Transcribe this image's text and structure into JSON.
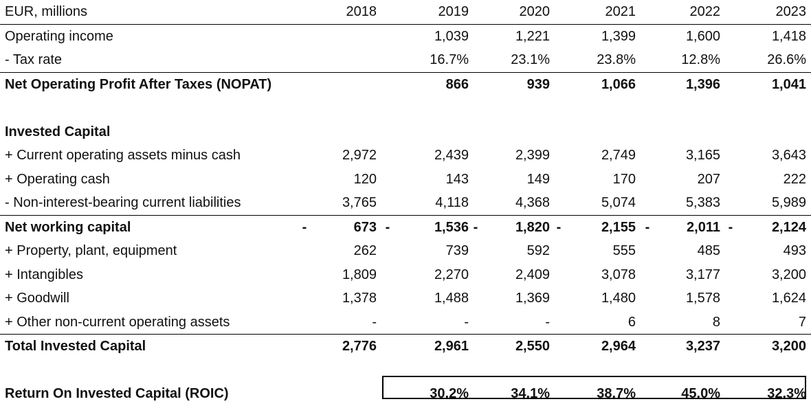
{
  "header": {
    "unit_label": "EUR, millions",
    "years": [
      "2018",
      "2019",
      "2020",
      "2021",
      "2022",
      "2023"
    ]
  },
  "rows": [
    {
      "key": "operating_income",
      "label": "Operating income",
      "bold": false,
      "values": [
        "",
        "1,039",
        "1,221",
        "1,399",
        "1,600",
        "1,418"
      ],
      "neg": [
        "",
        "",
        "",
        "",
        "",
        ""
      ]
    },
    {
      "key": "tax_rate",
      "label": "- Tax rate",
      "bold": false,
      "values": [
        "",
        "16.7%",
        "23.1%",
        "23.8%",
        "12.8%",
        "26.6%"
      ],
      "neg": [
        "",
        "",
        "",
        "",
        "",
        ""
      ]
    },
    {
      "key": "nopat",
      "label": "Net Operating Profit After Taxes (NOPAT)",
      "bold": true,
      "values": [
        "",
        "866",
        "939",
        "1,066",
        "1,396",
        "1,041"
      ],
      "neg": [
        "",
        "",
        "",
        "",
        "",
        ""
      ]
    },
    {
      "key": "spacer_1",
      "spacer": true
    },
    {
      "key": "invested_capital_heading",
      "label": "Invested Capital",
      "bold": true,
      "values": [
        "",
        "",
        "",
        "",
        "",
        ""
      ],
      "neg": [
        "",
        "",
        "",
        "",
        "",
        ""
      ]
    },
    {
      "key": "current_operating_assets",
      "label": "+ Current operating assets minus cash",
      "bold": false,
      "values": [
        "2,972",
        "2,439",
        "2,399",
        "2,749",
        "3,165",
        "3,643"
      ],
      "neg": [
        "",
        "",
        "",
        "",
        "",
        ""
      ]
    },
    {
      "key": "operating_cash",
      "label": "+ Operating cash",
      "bold": false,
      "values": [
        "120",
        "143",
        "149",
        "170",
        "207",
        "222"
      ],
      "neg": [
        "",
        "",
        "",
        "",
        "",
        ""
      ]
    },
    {
      "key": "non_interest_liabilities",
      "label": "- Non-interest-bearing current liabilities",
      "bold": false,
      "values": [
        "3,765",
        "4,118",
        "4,368",
        "5,074",
        "5,383",
        "5,989"
      ],
      "neg": [
        "",
        "",
        "",
        "",
        "",
        ""
      ]
    },
    {
      "key": "net_working_capital",
      "label": "Net working capital",
      "bold": true,
      "values": [
        "673",
        "1,536",
        "1,820",
        "2,155",
        "2,011",
        "2,124"
      ],
      "neg": [
        "-",
        "-",
        "-",
        "-",
        "-",
        "-"
      ]
    },
    {
      "key": "ppe",
      "label": "+ Property, plant, equipment",
      "bold": false,
      "values": [
        "262",
        "739",
        "592",
        "555",
        "485",
        "493"
      ],
      "neg": [
        "",
        "",
        "",
        "",
        "",
        ""
      ]
    },
    {
      "key": "intangibles",
      "label": "+ Intangibles",
      "bold": false,
      "values": [
        "1,809",
        "2,270",
        "2,409",
        "3,078",
        "3,177",
        "3,200"
      ],
      "neg": [
        "",
        "",
        "",
        "",
        "",
        ""
      ]
    },
    {
      "key": "goodwill",
      "label": "+ Goodwill",
      "bold": false,
      "values": [
        "1,378",
        "1,488",
        "1,369",
        "1,480",
        "1,578",
        "1,624"
      ],
      "neg": [
        "",
        "",
        "",
        "",
        "",
        ""
      ]
    },
    {
      "key": "other_noncurrent",
      "label": "+ Other non-current operating assets",
      "bold": false,
      "values": [
        "-",
        "-",
        "-",
        "6",
        "8",
        "7"
      ],
      "neg": [
        "",
        "",
        "",
        "",
        "",
        ""
      ]
    },
    {
      "key": "total_invested_capital",
      "label": "Total Invested Capital",
      "bold": true,
      "values": [
        "2,776",
        "2,961",
        "2,550",
        "2,964",
        "3,237",
        "3,200"
      ],
      "neg": [
        "",
        "",
        "",
        "",
        "",
        ""
      ]
    },
    {
      "key": "spacer_2",
      "spacer": true
    },
    {
      "key": "roic",
      "label": "Return On Invested Capital (ROIC)",
      "bold": true,
      "values": [
        "",
        "30.2%",
        "34.1%",
        "38.7%",
        "45.0%",
        "32.3%"
      ],
      "neg": [
        "",
        "",
        "",
        "",
        "",
        ""
      ]
    }
  ]
}
